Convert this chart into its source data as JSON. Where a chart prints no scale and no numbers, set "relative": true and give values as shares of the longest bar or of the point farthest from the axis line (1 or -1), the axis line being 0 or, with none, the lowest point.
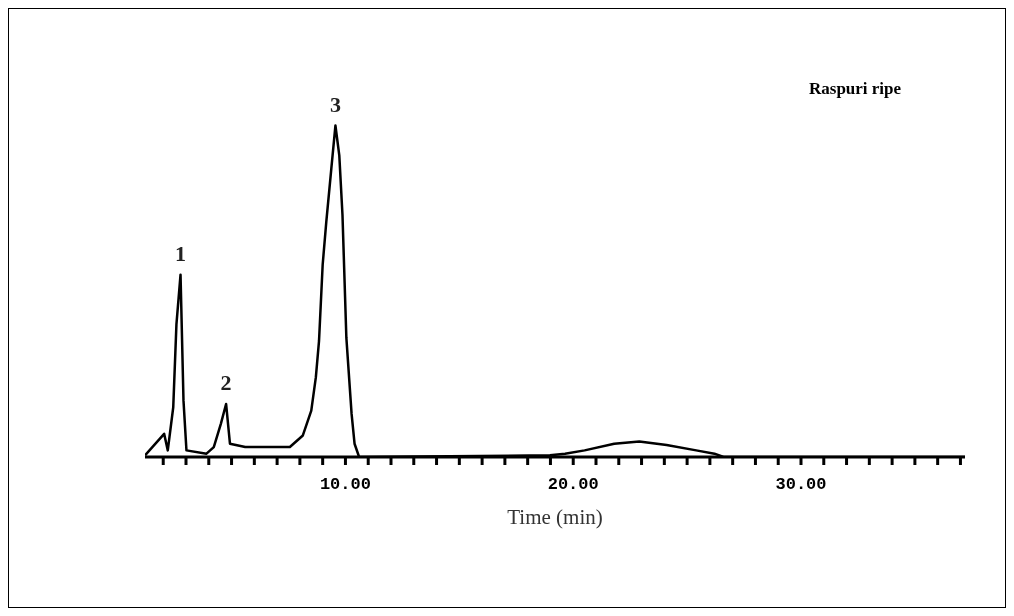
{
  "chart_data": {
    "type": "line",
    "relative": true,
    "xlabel": "Time (min)",
    "annotations": [
      "Raspuri ripe",
      {
        "text": "1",
        "x": 2.76,
        "y": 0.55
      },
      {
        "text": "2",
        "x": 4.76,
        "y": 0.16
      },
      {
        "text": "3",
        "x": 9.56,
        "y": 1.0
      }
    ],
    "x": [
      1.2,
      2.04,
      2.2,
      2.44,
      2.58,
      2.76,
      2.89,
      3.02,
      3.9,
      4.22,
      4.53,
      4.76,
      4.93,
      5.6,
      6.5,
      7.56,
      8.13,
      8.5,
      8.7,
      8.84,
      9.0,
      9.16,
      9.38,
      9.56,
      9.73,
      9.87,
      10.04,
      10.27,
      10.4,
      10.6,
      18.98,
      19.64,
      20.5,
      21.8,
      22.9,
      24.1,
      25.4,
      26.2,
      26.6,
      37.2
    ],
    "series": [
      {
        "color": "#000000",
        "values": [
          0.005,
          0.07,
          0.02,
          0.15,
          0.4,
          0.55,
          0.17,
          0.02,
          0.01,
          0.03,
          0.1,
          0.16,
          0.04,
          0.03,
          0.03,
          0.03,
          0.065,
          0.14,
          0.24,
          0.35,
          0.58,
          0.71,
          0.87,
          1.0,
          0.91,
          0.73,
          0.36,
          0.13,
          0.04,
          0,
          0.005,
          0.01,
          0.02,
          0.04,
          0.047,
          0.036,
          0.02,
          0.01,
          0,
          0
        ]
      }
    ],
    "xlim": [
      1.2,
      37.2
    ],
    "xticks": [
      {
        "value": 2,
        "label": null
      },
      {
        "value": 3,
        "label": null
      },
      {
        "value": 4,
        "label": null
      },
      {
        "value": 5,
        "label": null
      },
      {
        "value": 6,
        "label": null
      },
      {
        "value": 7,
        "label": null
      },
      {
        "value": 8,
        "label": null
      },
      {
        "value": 9,
        "label": null
      },
      {
        "value": 10,
        "label": "10.00"
      },
      {
        "value": 11,
        "label": null
      },
      {
        "value": 12,
        "label": null
      },
      {
        "value": 13,
        "label": null
      },
      {
        "value": 14,
        "label": null
      },
      {
        "value": 15,
        "label": null
      },
      {
        "value": 16,
        "label": null
      },
      {
        "value": 17,
        "label": null
      },
      {
        "value": 18,
        "label": null
      },
      {
        "value": 19,
        "label": null
      },
      {
        "value": 20,
        "label": "20.00"
      },
      {
        "value": 21,
        "label": null
      },
      {
        "value": 22,
        "label": null
      },
      {
        "value": 23,
        "label": null
      },
      {
        "value": 24,
        "label": null
      },
      {
        "value": 25,
        "label": null
      },
      {
        "value": 26,
        "label": null
      },
      {
        "value": 27,
        "label": null
      },
      {
        "value": 28,
        "label": null
      },
      {
        "value": 29,
        "label": null
      },
      {
        "value": 30,
        "label": "30.00"
      },
      {
        "value": 31,
        "label": null
      },
      {
        "value": 32,
        "label": null
      },
      {
        "value": 33,
        "label": null
      },
      {
        "value": 34,
        "label": null
      },
      {
        "value": 35,
        "label": null
      },
      {
        "value": 36,
        "label": null
      },
      {
        "value": 37,
        "label": null
      }
    ],
    "grid": false,
    "legend": false,
    "marker": "none",
    "line_style": "solid"
  }
}
